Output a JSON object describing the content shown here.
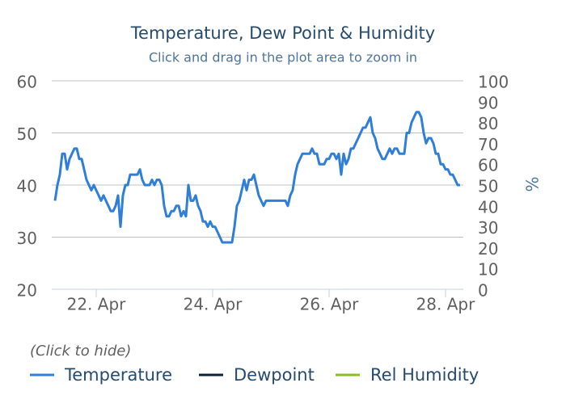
{
  "chart_data": {
    "type": "line",
    "title": "Temperature, Dew Point & Humidity",
    "subtitle": "Click and drag in the plot area to zoom in",
    "y2_label": "%",
    "legend_title": "(Click to hide)",
    "legend": "bottom-left",
    "grid": true,
    "xlim": [
      21.236,
      28.306
    ],
    "xticks": [
      {
        "value": 22,
        "label": "22. Apr"
      },
      {
        "value": 24,
        "label": "24. Apr"
      },
      {
        "value": 26,
        "label": "26. Apr"
      },
      {
        "value": 28,
        "label": "28. Apr"
      }
    ],
    "ylim": [
      20,
      60
    ],
    "yticks": [
      20,
      30,
      40,
      50,
      60
    ],
    "y2lim": [
      0,
      100
    ],
    "y2ticks": [
      0,
      10,
      20,
      30,
      40,
      50,
      60,
      70,
      80,
      90,
      100
    ],
    "x": [
      21.2917,
      21.3333,
      21.375,
      21.4167,
      21.4583,
      21.5,
      21.5417,
      21.5833,
      21.625,
      21.6667,
      21.7083,
      21.75,
      21.7917,
      21.8333,
      21.875,
      21.9167,
      21.9583,
      22,
      22.0417,
      22.0833,
      22.125,
      22.1667,
      22.2083,
      22.25,
      22.2917,
      22.3333,
      22.375,
      22.4167,
      22.4583,
      22.5,
      22.5417,
      22.5833,
      22.625,
      22.6667,
      22.7083,
      22.75,
      22.7917,
      22.8333,
      22.875,
      22.9167,
      22.9583,
      23,
      23.0417,
      23.0833,
      23.125,
      23.1667,
      23.2083,
      23.25,
      23.2917,
      23.3333,
      23.375,
      23.4167,
      23.4583,
      23.5,
      23.5417,
      23.5833,
      23.625,
      23.6667,
      23.7083,
      23.75,
      23.7917,
      23.8333,
      23.875,
      23.9167,
      23.9583,
      24,
      24.0417,
      24.0833,
      24.125,
      24.1667,
      24.2083,
      24.25,
      24.2917,
      24.3333,
      24.375,
      24.4167,
      24.4583,
      24.5,
      24.5417,
      24.5833,
      24.625,
      24.6667,
      24.7083,
      24.75,
      24.7917,
      24.8333,
      24.875,
      24.9167,
      24.9583,
      25,
      25.0417,
      25.0833,
      25.125,
      25.1667,
      25.2083,
      25.25,
      25.2917,
      25.3333,
      25.375,
      25.4167,
      25.4583,
      25.5,
      25.5417,
      25.5833,
      25.625,
      25.6667,
      25.7083,
      25.75,
      25.7917,
      25.8333,
      25.875,
      25.9167,
      25.9583,
      26,
      26.0417,
      26.0833,
      26.125,
      26.1667,
      26.2083,
      26.25,
      26.2917,
      26.3333,
      26.375,
      26.4167,
      26.4583,
      26.5,
      26.5417,
      26.5833,
      26.625,
      26.6667,
      26.7083,
      26.75,
      26.7917,
      26.8333,
      26.875,
      26.9167,
      26.9583,
      27,
      27.0417,
      27.0833,
      27.125,
      27.1667,
      27.2083,
      27.25,
      27.2917,
      27.3333,
      27.375,
      27.4167,
      27.4583,
      27.5,
      27.5417,
      27.5833,
      27.625,
      27.6667,
      27.7083,
      27.75,
      27.7917,
      27.8333,
      27.875,
      27.9167,
      27.9583,
      28,
      28.0417,
      28.0833,
      28.125,
      28.1667,
      28.2083,
      28.25
    ],
    "series": [
      {
        "name": "Temperature",
        "color": "#2f7ed8",
        "values": [
          37,
          40,
          42,
          46,
          46,
          43,
          45,
          46,
          47,
          47,
          45,
          45,
          43,
          41,
          40,
          39,
          40,
          39,
          38,
          37,
          38,
          37,
          36,
          35,
          35,
          36,
          38,
          32,
          38,
          40,
          40,
          42,
          42,
          42,
          42,
          43,
          41,
          40,
          40,
          40,
          41,
          40,
          41,
          41,
          40,
          36,
          34,
          34,
          35,
          35,
          36,
          36,
          34,
          35,
          34,
          40,
          37,
          37,
          38,
          36,
          35,
          33,
          33,
          32,
          33,
          32,
          32,
          31,
          30,
          29,
          29,
          29,
          29,
          29,
          32,
          36,
          37,
          39,
          41,
          39,
          41,
          41,
          42,
          40,
          38,
          37,
          36,
          37,
          37,
          37,
          37,
          37,
          37,
          37,
          37,
          37,
          36,
          38,
          39,
          42,
          44,
          45,
          46,
          46,
          46,
          46,
          47,
          46,
          46,
          44,
          44,
          44,
          45,
          45,
          46,
          46,
          45,
          46,
          42,
          46,
          44,
          45,
          47,
          47,
          48,
          49,
          50,
          51,
          51,
          52,
          53,
          50,
          49,
          47,
          46,
          45,
          45,
          46,
          47,
          46,
          47,
          47,
          46,
          46,
          46,
          50,
          50,
          52,
          53,
          54,
          54,
          53,
          50,
          48,
          49,
          49,
          48,
          46,
          46,
          44,
          44,
          43,
          43,
          42,
          42,
          41,
          40,
          40
        ]
      },
      {
        "name": "Dewpoint",
        "color": "#0d233a"
      },
      {
        "name": "Rel Humidity",
        "color": "#8bbc21",
        "axis": "y2"
      }
    ]
  }
}
